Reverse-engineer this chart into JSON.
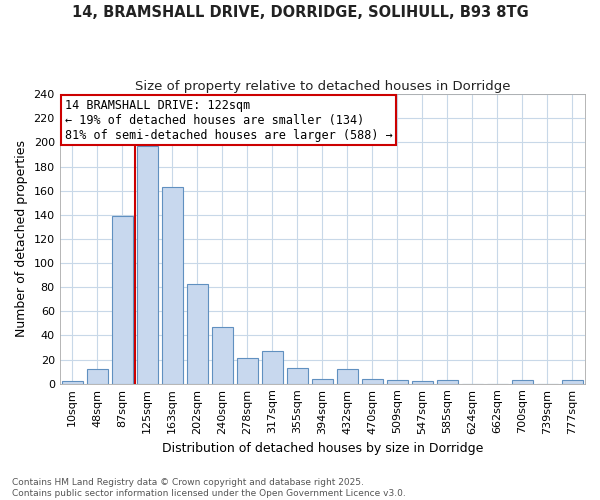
{
  "title": "14, BRAMSHALL DRIVE, DORRIDGE, SOLIHULL, B93 8TG",
  "subtitle": "Size of property relative to detached houses in Dorridge",
  "xlabel": "Distribution of detached houses by size in Dorridge",
  "ylabel": "Number of detached properties",
  "categories": [
    "10sqm",
    "48sqm",
    "87sqm",
    "125sqm",
    "163sqm",
    "202sqm",
    "240sqm",
    "278sqm",
    "317sqm",
    "355sqm",
    "394sqm",
    "432sqm",
    "470sqm",
    "509sqm",
    "547sqm",
    "585sqm",
    "624sqm",
    "662sqm",
    "700sqm",
    "739sqm",
    "777sqm"
  ],
  "values": [
    2,
    12,
    139,
    197,
    163,
    83,
    47,
    21,
    27,
    13,
    4,
    12,
    4,
    3,
    2,
    3,
    0,
    0,
    3,
    0,
    3
  ],
  "bar_color": "#c8d8ee",
  "bar_edge_color": "#6090c0",
  "vline_color": "#cc0000",
  "annotation_text": "14 BRAMSHALL DRIVE: 122sqm\n← 19% of detached houses are smaller (134)\n81% of semi-detached houses are larger (588) →",
  "annotation_box_color": "#ffffff",
  "annotation_box_edge": "#cc0000",
  "ylim": [
    0,
    240
  ],
  "yticks": [
    0,
    20,
    40,
    60,
    80,
    100,
    120,
    140,
    160,
    180,
    200,
    220,
    240
  ],
  "grid_color": "#c8d8e8",
  "background_color": "#ffffff",
  "plot_bg_color": "#ffffff",
  "footer": "Contains HM Land Registry data © Crown copyright and database right 2025.\nContains public sector information licensed under the Open Government Licence v3.0.",
  "title_fontsize": 10.5,
  "subtitle_fontsize": 9.5,
  "axis_label_fontsize": 9,
  "tick_fontsize": 8,
  "annotation_fontsize": 8.5,
  "footer_fontsize": 6.5
}
